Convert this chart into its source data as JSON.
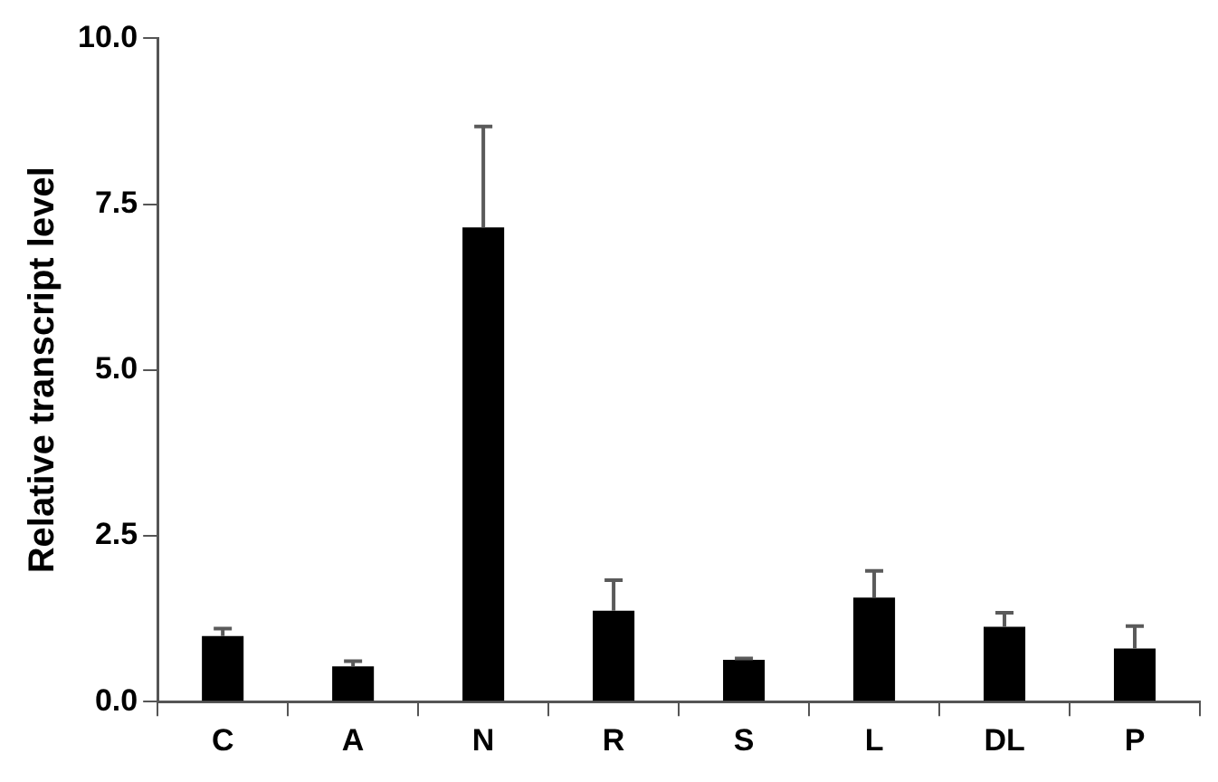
{
  "chart_data": {
    "type": "bar",
    "ylabel": "Relative transcript level",
    "categories": [
      "C",
      "A",
      "N",
      "R",
      "S",
      "L",
      "DL",
      "P"
    ],
    "values": [
      0.99,
      0.53,
      7.15,
      1.37,
      0.63,
      1.57,
      1.13,
      0.8
    ],
    "errors": [
      [
        0.99,
        1.1
      ],
      [
        0.53,
        0.61
      ],
      [
        7.15,
        8.67
      ],
      [
        1.37,
        1.83
      ],
      [
        0.63,
        0.65
      ],
      [
        1.57,
        1.97
      ],
      [
        1.13,
        1.34
      ],
      [
        0.8,
        1.14
      ]
    ],
    "color": "#000000",
    "ylim": [
      0,
      10
    ],
    "yticks": [
      {
        "value": 0,
        "label": "0.0"
      },
      {
        "value": 2.5,
        "label": "2.5"
      },
      {
        "value": 5,
        "label": "5.0"
      },
      {
        "value": 7.5,
        "label": "7.5"
      },
      {
        "value": 10,
        "label": "10.0"
      }
    ],
    "grid": false,
    "legend": false
  }
}
